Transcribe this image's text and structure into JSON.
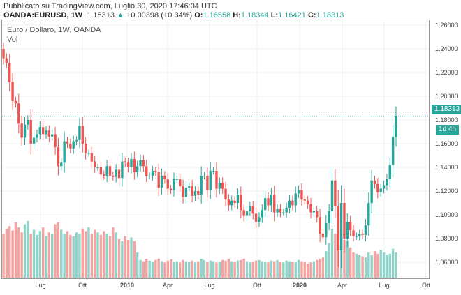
{
  "header": {
    "published": "Pubblicato su TradingView.com, Luglio 30, 2020 17:46:04 UTC",
    "symbol": "OANDA:EURUSD, 1W",
    "last": "1.18313",
    "change": "+0.00398 (+0.34%)",
    "o_label": "O:",
    "o": "1.16558",
    "h_label": "H:",
    "h": "1.18344",
    "l_label": "L:",
    "l": "1.16421",
    "c_label": "C:",
    "c": "1.18313"
  },
  "legend": {
    "title": "Euro / Dollaro, 1W, OANDA",
    "vol": "Vol"
  },
  "price_axis": [
    "1.26000",
    "1.24000",
    "1.22000",
    "1.20000",
    "1.18000",
    "1.16000",
    "1.14000",
    "1.12000",
    "1.10000",
    "1.08000",
    "1.06000"
  ],
  "time_axis": [
    "Lug",
    "Ott",
    "2019",
    "Apr",
    "Lug",
    "Ott",
    "2020",
    "Apr",
    "Lug",
    "Ott"
  ],
  "price_tag": "1.18313",
  "countdown": "1d 4h",
  "colors": {
    "up": "#26a69a",
    "down": "#ef5350",
    "up_vol": "#8fd3c9",
    "down_vol": "#f5a3a1"
  },
  "chart_data": {
    "type": "candlestick",
    "start": 1.24,
    "ylim": [
      1.045,
      1.265
    ],
    "closes": [
      1.232,
      1.228,
      1.212,
      1.196,
      1.194,
      1.177,
      1.165,
      1.176,
      1.18,
      1.16,
      1.165,
      1.168,
      1.174,
      1.168,
      1.171,
      1.166,
      1.168,
      1.157,
      1.141,
      1.144,
      1.162,
      1.16,
      1.156,
      1.162,
      1.163,
      1.175,
      1.16,
      1.152,
      1.152,
      1.145,
      1.14,
      1.14,
      1.134,
      1.133,
      1.141,
      1.133,
      1.132,
      1.138,
      1.131,
      1.145,
      1.144,
      1.14,
      1.147,
      1.136,
      1.141,
      1.146,
      1.141,
      1.133,
      1.133,
      1.137,
      1.136,
      1.123,
      1.133,
      1.13,
      1.122,
      1.121,
      1.13,
      1.13,
      1.124,
      1.115,
      1.123,
      1.124,
      1.116,
      1.12,
      1.117,
      1.133,
      1.133,
      1.121,
      1.137,
      1.137,
      1.122,
      1.127,
      1.122,
      1.113,
      1.108,
      1.112,
      1.11,
      1.117,
      1.104,
      1.099,
      1.103,
      1.107,
      1.101,
      1.094,
      1.098,
      1.104,
      1.114,
      1.108,
      1.117,
      1.102,
      1.105,
      1.102,
      1.102,
      1.106,
      1.112,
      1.108,
      1.118,
      1.121,
      1.113,
      1.112,
      1.109,
      1.102,
      1.103,
      1.098,
      1.084,
      1.081,
      1.093,
      1.103,
      1.129,
      1.107,
      1.07,
      1.11,
      1.08,
      1.094,
      1.087,
      1.082,
      1.082,
      1.084,
      1.083,
      1.091,
      1.11,
      1.129,
      1.126,
      1.119,
      1.122,
      1.125,
      1.13,
      1.142,
      1.1656,
      1.1831
    ],
    "volumes": [
      70,
      78,
      82,
      75,
      88,
      80,
      72,
      85,
      90,
      70,
      76,
      68,
      74,
      80,
      66,
      72,
      70,
      85,
      88,
      76,
      70,
      74,
      68,
      66,
      72,
      70,
      78,
      74,
      80,
      70,
      76,
      72,
      68,
      74,
      70,
      66,
      80,
      72,
      62,
      58,
      66,
      60,
      64,
      58,
      40,
      28,
      26,
      30,
      27,
      25,
      28,
      30,
      26,
      24,
      27,
      29,
      25,
      26,
      24,
      28,
      26,
      25,
      27,
      24,
      26,
      30,
      28,
      25,
      27,
      26,
      24,
      25,
      28,
      27,
      30,
      26,
      25,
      27,
      28,
      30,
      26,
      24,
      25,
      27,
      28,
      26,
      25,
      24,
      27,
      26,
      28,
      25,
      24,
      27,
      26,
      25,
      24,
      28,
      26,
      25,
      22,
      24,
      26,
      28,
      30,
      32,
      42,
      55,
      78,
      70,
      62,
      75,
      60,
      58,
      48,
      40,
      38,
      36,
      34,
      32,
      40,
      36,
      42,
      38,
      44,
      40,
      36,
      38,
      46,
      40
    ]
  }
}
